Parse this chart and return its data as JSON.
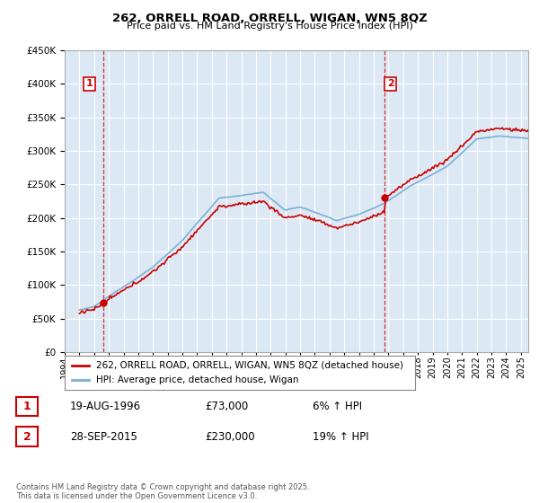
{
  "title": "262, ORRELL ROAD, ORRELL, WIGAN, WN5 8QZ",
  "subtitle": "Price paid vs. HM Land Registry's House Price Index (HPI)",
  "background_color": "#ffffff",
  "plot_bg_color": "#dce9f5",
  "grid_color": "#ffffff",
  "line1_color": "#cc0000",
  "line2_color": "#7bafd4",
  "sale1_year": 1996.64,
  "sale1_price": 73000,
  "sale2_year": 2015.75,
  "sale2_price": 230000,
  "legend1": "262, ORRELL ROAD, ORRELL, WIGAN, WN5 8QZ (detached house)",
  "legend2": "HPI: Average price, detached house, Wigan",
  "table_row1": [
    "1",
    "19-AUG-1996",
    "£73,000",
    "6% ↑ HPI"
  ],
  "table_row2": [
    "2",
    "28-SEP-2015",
    "£230,000",
    "19% ↑ HPI"
  ],
  "footnote": "Contains HM Land Registry data © Crown copyright and database right 2025.\nThis data is licensed under the Open Government Licence v3.0.",
  "xmin": 1994.2,
  "xmax": 2025.5,
  "ymin": 0,
  "ymax": 450000
}
